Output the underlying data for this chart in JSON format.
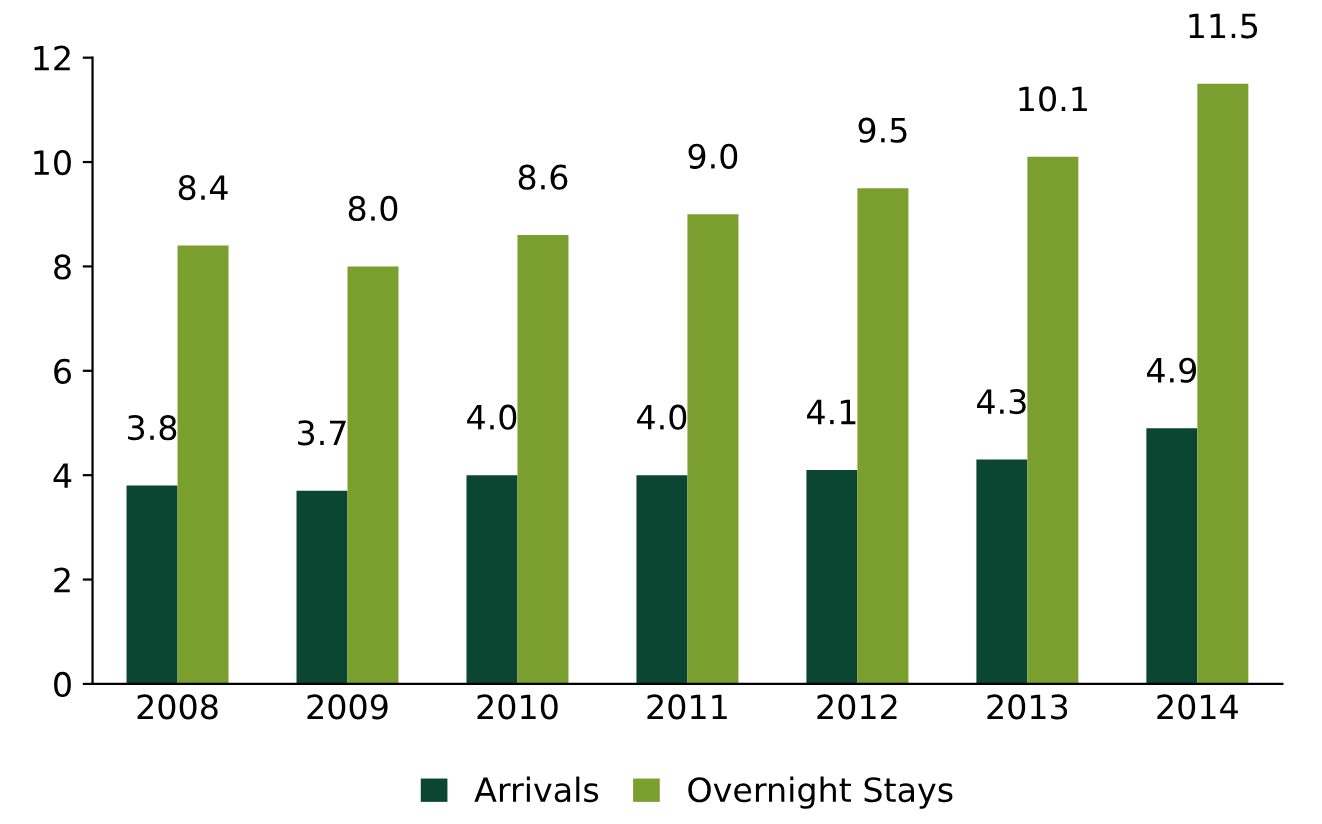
{
  "chart_data": {
    "type": "bar",
    "categories": [
      "2008",
      "2009",
      "2010",
      "2011",
      "2012",
      "2013",
      "2014"
    ],
    "series": [
      {
        "name": "Arrivals",
        "color": "#0b4632",
        "values": [
          3.8,
          3.7,
          4.0,
          4.0,
          4.1,
          4.3,
          4.9
        ],
        "value_labels": [
          "3.8",
          "3.7",
          "4.0",
          "4.0",
          "4.1",
          "4.3",
          "4.9"
        ]
      },
      {
        "name": "Overnight Stays",
        "color": "#7b9f2f",
        "values": [
          8.4,
          8.0,
          8.6,
          9.0,
          9.5,
          10.1,
          11.5
        ],
        "value_labels": [
          "8.4",
          "8.0",
          "8.6",
          "9.0",
          "9.5",
          "10.1",
          "11.5"
        ]
      }
    ],
    "ylim": [
      0,
      12
    ],
    "yticks": [
      0,
      2,
      4,
      6,
      8,
      10,
      12
    ],
    "legend": "bottom",
    "grid": false
  }
}
